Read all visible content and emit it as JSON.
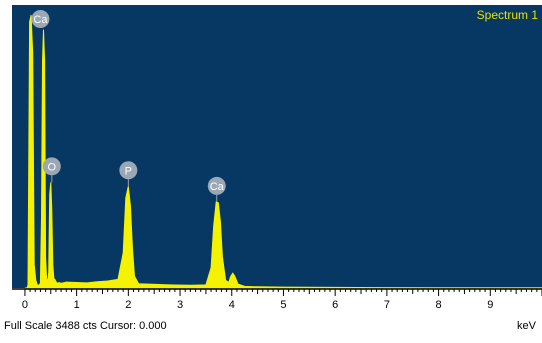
{
  "colors": {
    "plot_background": "#073763",
    "spectrum_fill": "#f4f200",
    "spectrum_title": "#e7e200",
    "peak_marker_fill": "#9aa7b4",
    "peak_marker_text": "#ffffff",
    "axis": "#000000"
  },
  "status": {
    "full_scale_label": "Full Scale",
    "full_scale_value": "3488",
    "counts_unit": "cts",
    "cursor_label": "Cursor:",
    "cursor_value": "0.000",
    "text": "Full Scale 3488 cts Cursor: 0.000"
  },
  "chart_data": {
    "type": "area",
    "series": [
      {
        "name": "Spectrum 1",
        "x": [
          0.0,
          0.04,
          0.06,
          0.09,
          0.12,
          0.15,
          0.18,
          0.21,
          0.24,
          0.27,
          0.3,
          0.32,
          0.34,
          0.36,
          0.38,
          0.4,
          0.42,
          0.44,
          0.46,
          0.48,
          0.5,
          0.52,
          0.54,
          0.56,
          0.58,
          0.6,
          0.63,
          0.66,
          0.7,
          0.8,
          1.0,
          1.2,
          1.4,
          1.6,
          1.8,
          1.9,
          1.95,
          2.0,
          2.04,
          2.08,
          2.12,
          2.2,
          2.4,
          2.8,
          3.2,
          3.5,
          3.6,
          3.65,
          3.7,
          3.74,
          3.78,
          3.82,
          3.88,
          3.94,
          3.98,
          4.02,
          4.06,
          4.12,
          4.25,
          4.5,
          5.0,
          6.0,
          7.0,
          8.0,
          9.0,
          10.0
        ],
        "y": [
          0,
          0,
          40,
          3400,
          3488,
          3000,
          300,
          100,
          40,
          35,
          60,
          900,
          2900,
          3300,
          2900,
          400,
          120,
          80,
          200,
          1200,
          1350,
          1000,
          300,
          120,
          110,
          80,
          60,
          70,
          60,
          75,
          70,
          65,
          80,
          90,
          110,
          450,
          1150,
          1300,
          1050,
          500,
          150,
          55,
          50,
          40,
          35,
          40,
          260,
          800,
          1100,
          1090,
          850,
          400,
          100,
          70,
          150,
          190,
          150,
          50,
          20,
          15,
          12,
          8,
          5,
          4,
          3,
          2
        ]
      }
    ],
    "title": "Spectrum 1",
    "xlabel": "keV",
    "ylabel": "",
    "xlim": [
      -0.25,
      10.0
    ],
    "ylim": [
      0,
      3488
    ],
    "x_ticks": [
      "0",
      "1",
      "2",
      "3",
      "4",
      "5",
      "6",
      "7",
      "8",
      "9"
    ],
    "x_tick_values": [
      0,
      1,
      2,
      3,
      4,
      5,
      6,
      7,
      8,
      9
    ],
    "grid": false,
    "peak_labels": [
      {
        "label": "Ca",
        "x": 0.3,
        "y": 3488
      },
      {
        "label": "O",
        "x": 0.52,
        "y": 1350
      },
      {
        "label": "P",
        "x": 2.0,
        "y": 1300
      },
      {
        "label": "Ca",
        "x": 3.71,
        "y": 1100
      }
    ]
  }
}
